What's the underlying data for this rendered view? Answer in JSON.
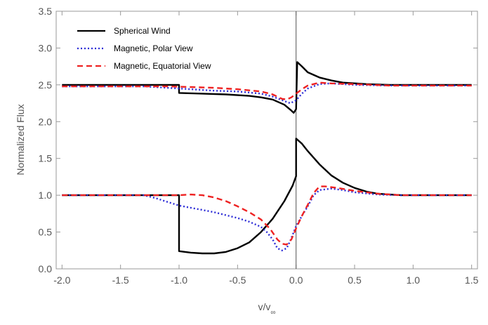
{
  "chart_data": {
    "type": "line",
    "title": "",
    "xlabel": "v/v∞",
    "ylabel": "Normalized Flux",
    "xlim": [
      -2.05,
      1.55
    ],
    "ylim": [
      0.0,
      3.5
    ],
    "x_ticks": [
      -2.0,
      -1.5,
      -1.0,
      -0.5,
      0.0,
      0.5,
      1.0,
      1.5
    ],
    "x_tick_labels": [
      "-2.0",
      "-1.5",
      "-1.0",
      "-0.5",
      "0.0",
      "0.5",
      "1.0",
      "1.5"
    ],
    "y_ticks": [
      0.0,
      0.5,
      1.0,
      1.5,
      2.0,
      2.5,
      3.0,
      3.5
    ],
    "y_tick_labels": [
      "0.0",
      "0.5",
      "1.0",
      "1.5",
      "2.0",
      "2.5",
      "3.0",
      "3.5"
    ],
    "grid": false,
    "legend_position": "top-left",
    "vertical_reference_line_x": 0.0,
    "series": [
      {
        "name": "Spherical Wind",
        "color": "#000000",
        "dash": "solid",
        "segments": [
          [
            [
              -2.0,
              1.0
            ],
            [
              -1.0,
              1.0
            ],
            [
              -1.0,
              0.24
            ],
            [
              -0.9,
              0.22
            ],
            [
              -0.8,
              0.21
            ],
            [
              -0.7,
              0.21
            ],
            [
              -0.6,
              0.23
            ],
            [
              -0.5,
              0.28
            ],
            [
              -0.4,
              0.36
            ],
            [
              -0.3,
              0.5
            ],
            [
              -0.2,
              0.68
            ],
            [
              -0.1,
              0.92
            ],
            [
              -0.03,
              1.13
            ],
            [
              0.0,
              1.26
            ],
            [
              0.0,
              1.77
            ],
            [
              0.05,
              1.7
            ],
            [
              0.1,
              1.6
            ],
            [
              0.2,
              1.42
            ],
            [
              0.3,
              1.27
            ],
            [
              0.4,
              1.17
            ],
            [
              0.5,
              1.1
            ],
            [
              0.6,
              1.05
            ],
            [
              0.7,
              1.02
            ],
            [
              0.8,
              1.01
            ],
            [
              0.9,
              1.0
            ],
            [
              1.5,
              1.0
            ]
          ],
          [
            [
              -2.0,
              2.5
            ],
            [
              -1.0,
              2.5
            ],
            [
              -1.0,
              2.39
            ],
            [
              -0.8,
              2.38
            ],
            [
              -0.6,
              2.37
            ],
            [
              -0.4,
              2.35
            ],
            [
              -0.3,
              2.33
            ],
            [
              -0.2,
              2.3
            ],
            [
              -0.1,
              2.23
            ],
            [
              -0.04,
              2.15
            ],
            [
              -0.02,
              2.12
            ],
            [
              0.0,
              2.17
            ],
            [
              0.01,
              2.81
            ],
            [
              0.05,
              2.75
            ],
            [
              0.1,
              2.67
            ],
            [
              0.2,
              2.6
            ],
            [
              0.3,
              2.56
            ],
            [
              0.4,
              2.53
            ],
            [
              0.6,
              2.51
            ],
            [
              0.8,
              2.5
            ],
            [
              1.5,
              2.5
            ]
          ]
        ]
      },
      {
        "name": "Magnetic, Polar View",
        "color": "#2b2bd6",
        "dash": "dotted",
        "segments": [
          [
            [
              -2.0,
              1.0
            ],
            [
              -1.3,
              1.0
            ],
            [
              -1.2,
              0.96
            ],
            [
              -1.1,
              0.91
            ],
            [
              -1.0,
              0.86
            ],
            [
              -0.9,
              0.83
            ],
            [
              -0.8,
              0.8
            ],
            [
              -0.7,
              0.77
            ],
            [
              -0.6,
              0.73
            ],
            [
              -0.5,
              0.69
            ],
            [
              -0.4,
              0.64
            ],
            [
              -0.3,
              0.57
            ],
            [
              -0.25,
              0.5
            ],
            [
              -0.2,
              0.4
            ],
            [
              -0.16,
              0.28
            ],
            [
              -0.12,
              0.25
            ],
            [
              -0.08,
              0.28
            ],
            [
              -0.05,
              0.38
            ],
            [
              0.0,
              0.58
            ],
            [
              0.05,
              0.72
            ],
            [
              0.1,
              0.85
            ],
            [
              0.15,
              1.0
            ],
            [
              0.2,
              1.07
            ],
            [
              0.3,
              1.09
            ],
            [
              0.4,
              1.07
            ],
            [
              0.5,
              1.04
            ],
            [
              0.7,
              1.01
            ],
            [
              0.9,
              1.0
            ],
            [
              1.5,
              1.0
            ]
          ],
          [
            [
              -2.0,
              2.48
            ],
            [
              -1.3,
              2.48
            ],
            [
              -1.1,
              2.46
            ],
            [
              -0.9,
              2.44
            ],
            [
              -0.7,
              2.42
            ],
            [
              -0.5,
              2.41
            ],
            [
              -0.3,
              2.38
            ],
            [
              -0.2,
              2.34
            ],
            [
              -0.1,
              2.28
            ],
            [
              -0.05,
              2.25
            ],
            [
              0.0,
              2.29
            ],
            [
              0.05,
              2.38
            ],
            [
              0.1,
              2.45
            ],
            [
              0.2,
              2.51
            ],
            [
              0.3,
              2.52
            ],
            [
              0.5,
              2.5
            ],
            [
              0.8,
              2.49
            ],
            [
              1.5,
              2.49
            ]
          ]
        ]
      },
      {
        "name": "Magnetic, Equatorial View",
        "color": "#ee2222",
        "dash": "dashed",
        "segments": [
          [
            [
              -2.0,
              1.0
            ],
            [
              -1.1,
              1.0
            ],
            [
              -1.0,
              1.0
            ],
            [
              -0.9,
              1.01
            ],
            [
              -0.8,
              1.0
            ],
            [
              -0.7,
              0.97
            ],
            [
              -0.6,
              0.92
            ],
            [
              -0.5,
              0.85
            ],
            [
              -0.4,
              0.77
            ],
            [
              -0.3,
              0.67
            ],
            [
              -0.22,
              0.54
            ],
            [
              -0.16,
              0.4
            ],
            [
              -0.12,
              0.34
            ],
            [
              -0.08,
              0.33
            ],
            [
              -0.04,
              0.4
            ],
            [
              0.0,
              0.55
            ],
            [
              0.05,
              0.72
            ],
            [
              0.1,
              0.87
            ],
            [
              0.15,
              1.03
            ],
            [
              0.2,
              1.12
            ],
            [
              0.25,
              1.12
            ],
            [
              0.35,
              1.1
            ],
            [
              0.5,
              1.06
            ],
            [
              0.7,
              1.02
            ],
            [
              0.9,
              1.0
            ],
            [
              1.5,
              1.0
            ]
          ],
          [
            [
              -2.0,
              2.48
            ],
            [
              -1.1,
              2.48
            ],
            [
              -0.9,
              2.47
            ],
            [
              -0.7,
              2.46
            ],
            [
              -0.5,
              2.44
            ],
            [
              -0.3,
              2.41
            ],
            [
              -0.2,
              2.37
            ],
            [
              -0.12,
              2.31
            ],
            [
              -0.08,
              2.3
            ],
            [
              -0.04,
              2.33
            ],
            [
              0.0,
              2.38
            ],
            [
              0.05,
              2.44
            ],
            [
              0.1,
              2.49
            ],
            [
              0.2,
              2.53
            ],
            [
              0.3,
              2.52
            ],
            [
              0.5,
              2.51
            ],
            [
              0.8,
              2.49
            ],
            [
              1.5,
              2.49
            ]
          ]
        ]
      }
    ]
  }
}
